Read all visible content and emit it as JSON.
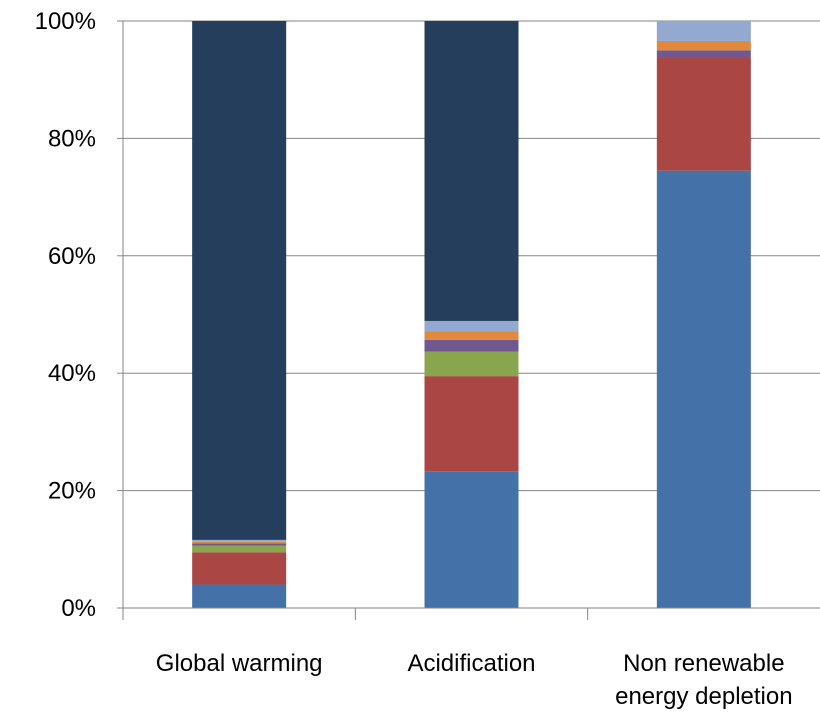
{
  "chart_data": {
    "type": "bar",
    "stacked": true,
    "percent_stacked": true,
    "categories": [
      "Global warming",
      "Acidification",
      "Non renewable energy depletion"
    ],
    "category_label_lines": [
      [
        "Global warming"
      ],
      [
        "Acidification"
      ],
      [
        "Non renewable",
        "energy depletion"
      ]
    ],
    "y_ticks": [
      "0%",
      "20%",
      "40%",
      "60%",
      "80%",
      "100%"
    ],
    "ylim": [
      0,
      100
    ],
    "grid": true,
    "legend": "none",
    "series": [
      {
        "color": "#4472a8",
        "values": [
          4.0,
          23.3,
          74.5
        ]
      },
      {
        "color": "#aa4644",
        "values": [
          5.5,
          16.2,
          19.2
        ]
      },
      {
        "color": "#89a54e",
        "values": [
          1.1,
          4.2,
          0.0
        ]
      },
      {
        "color": "#71588f",
        "values": [
          0.4,
          2.0,
          1.3
        ]
      },
      {
        "color": "#e0893d",
        "values": [
          0.3,
          1.4,
          1.6
        ]
      },
      {
        "color": "#93a9cf",
        "values": [
          0.3,
          1.8,
          3.4
        ]
      },
      {
        "color": "#253e5c",
        "values": [
          88.4,
          51.1,
          0.0
        ]
      }
    ]
  }
}
